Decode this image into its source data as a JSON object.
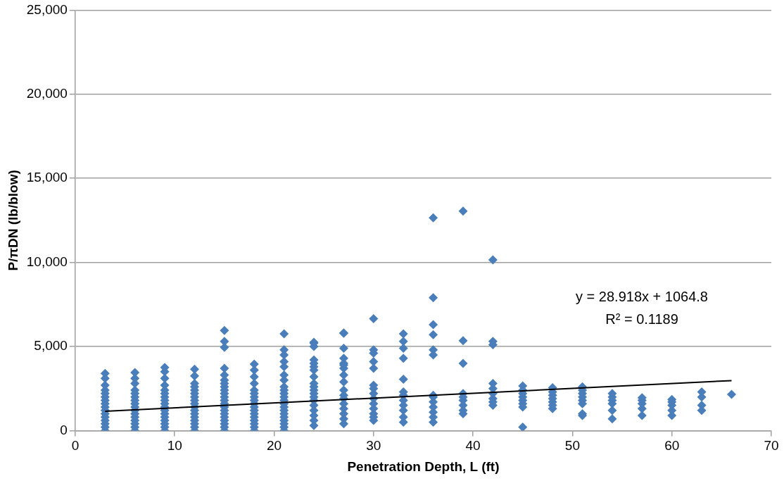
{
  "chart_data": {
    "type": "scatter",
    "xlabel": "Penetration Depth, L (ft)",
    "ylabel": "P/πDN (lb/blow)",
    "xlim": [
      0,
      70
    ],
    "xticks": [
      0,
      10,
      20,
      30,
      40,
      50,
      60,
      70
    ],
    "ylim": [
      0,
      25000
    ],
    "yticks": [
      {
        "value": 0,
        "label": "0"
      },
      {
        "value": 5000,
        "label": "5,000"
      },
      {
        "value": 10000,
        "label": "10,000"
      },
      {
        "value": 15000,
        "label": "15,000"
      },
      {
        "value": 20000,
        "label": "20,000"
      },
      {
        "value": 25000,
        "label": "25,000"
      }
    ],
    "grid": "y",
    "annotations": [
      "y = 28.918x + 1064.8",
      "R² = 0.1189"
    ],
    "series": [
      {
        "type": "scatter",
        "marker": "diamond",
        "color": "#4a7ebb",
        "x": [
          3,
          3,
          3,
          3,
          3,
          3,
          3,
          3,
          3,
          3,
          3,
          3,
          3,
          3,
          3,
          3,
          6,
          6,
          6,
          6,
          6,
          6,
          6,
          6,
          6,
          6,
          6,
          6,
          6,
          6,
          6,
          6,
          9,
          9,
          9,
          9,
          9,
          9,
          9,
          9,
          9,
          9,
          9,
          9,
          9,
          9,
          9,
          9,
          9,
          12,
          12,
          12,
          12,
          12,
          12,
          12,
          12,
          12,
          12,
          12,
          12,
          12,
          12,
          12,
          12,
          12,
          15,
          15,
          15,
          15,
          15,
          15,
          15,
          15,
          15,
          15,
          15,
          15,
          15,
          15,
          15,
          15,
          15,
          15,
          15,
          15,
          15,
          18,
          18,
          18,
          18,
          18,
          18,
          18,
          18,
          18,
          18,
          18,
          18,
          18,
          18,
          18,
          18,
          18,
          21,
          21,
          21,
          21,
          21,
          21,
          21,
          21,
          21,
          21,
          21,
          21,
          21,
          21,
          21,
          21,
          21,
          21,
          21,
          21,
          21,
          24,
          24,
          24,
          24,
          24,
          24,
          24,
          24,
          24,
          24,
          24,
          24,
          24,
          24,
          24,
          24,
          24,
          24,
          24,
          27,
          27,
          27,
          27,
          27,
          27,
          27,
          27,
          27,
          27,
          27,
          27,
          27,
          27,
          27,
          27,
          27,
          30,
          30,
          30,
          30,
          30,
          30,
          30,
          30,
          30,
          30,
          30,
          30,
          30,
          30,
          33,
          33,
          33,
          33,
          33,
          33,
          33,
          33,
          33,
          33,
          33,
          33,
          36,
          36,
          36,
          36,
          36,
          36,
          36,
          36,
          36,
          36,
          36,
          36,
          36,
          39,
          39,
          39,
          39,
          39,
          39,
          39,
          39,
          39,
          42,
          42,
          42,
          42,
          42,
          42,
          42,
          42,
          42,
          45,
          45,
          45,
          45,
          45,
          45,
          45,
          45,
          48,
          48,
          48,
          48,
          48,
          48,
          48,
          51,
          51,
          51,
          51,
          51,
          51,
          51,
          51,
          54,
          54,
          54,
          54,
          54,
          54,
          57,
          57,
          57,
          57,
          57,
          60,
          60,
          60,
          60,
          60,
          63,
          63,
          63,
          63,
          66
        ],
        "values": [
          0,
          200,
          400,
          600,
          800,
          1000,
          1200,
          1400,
          1600,
          1800,
          2000,
          2200,
          2400,
          2700,
          3100,
          3400,
          0,
          200,
          400,
          600,
          800,
          1000,
          1200,
          1400,
          1600,
          1800,
          2000,
          2200,
          2400,
          2800,
          3100,
          3450,
          0,
          200,
          400,
          600,
          800,
          1000,
          1200,
          1400,
          1600,
          1800,
          2000,
          2200,
          2400,
          2700,
          3100,
          3500,
          3750,
          0,
          200,
          400,
          600,
          800,
          1000,
          1200,
          1400,
          1600,
          1800,
          2000,
          2200,
          2400,
          2600,
          2800,
          3250,
          3650,
          0,
          200,
          400,
          600,
          800,
          1000,
          1200,
          1400,
          1600,
          1800,
          2000,
          2200,
          2400,
          2600,
          2800,
          3000,
          3300,
          3700,
          4950,
          5300,
          5950,
          0,
          200,
          400,
          600,
          800,
          1000,
          1200,
          1400,
          1600,
          1800,
          2000,
          2200,
          2400,
          2800,
          3200,
          3600,
          3950,
          0,
          200,
          400,
          600,
          800,
          1000,
          1200,
          1400,
          1600,
          1800,
          2000,
          2200,
          2400,
          2600,
          3000,
          3300,
          3800,
          4100,
          4500,
          4800,
          5750,
          300,
          600,
          900,
          1200,
          1500,
          1800,
          2000,
          2200,
          2400,
          2600,
          2800,
          3200,
          3600,
          3800,
          4000,
          4200,
          5000,
          5200,
          5250,
          400,
          700,
          1000,
          1300,
          1600,
          1900,
          2100,
          2400,
          2900,
          3300,
          3700,
          3900,
          4000,
          4300,
          4900,
          5800,
          5800,
          600,
          800,
          1000,
          1300,
          1600,
          1900,
          2200,
          2500,
          2700,
          3700,
          4100,
          4600,
          4800,
          6650,
          500,
          800,
          1200,
          1500,
          1800,
          2100,
          2300,
          3050,
          4300,
          4900,
          5300,
          5750,
          500,
          800,
          1100,
          1400,
          1700,
          2000,
          2100,
          4500,
          4800,
          5700,
          6300,
          7900,
          12650,
          1000,
          1200,
          1500,
          1800,
          2000,
          2200,
          4000,
          5350,
          13050,
          1500,
          1700,
          1900,
          2200,
          2500,
          2800,
          5100,
          5300,
          10150,
          200,
          1400,
          1600,
          1800,
          2000,
          2200,
          2400,
          2650,
          1300,
          1500,
          1700,
          1900,
          2100,
          2300,
          2550,
          900,
          1000,
          1600,
          1800,
          2000,
          2200,
          2400,
          2600,
          700,
          1200,
          1600,
          1800,
          2000,
          2200,
          900,
          1300,
          1600,
          1800,
          1950,
          900,
          1200,
          1500,
          1700,
          1850,
          1200,
          1500,
          2000,
          2300,
          2150
        ]
      },
      {
        "type": "line",
        "marker": "none",
        "color": "#000000",
        "x": [
          3,
          66
        ],
        "values": [
          1150,
          2970
        ]
      }
    ]
  }
}
